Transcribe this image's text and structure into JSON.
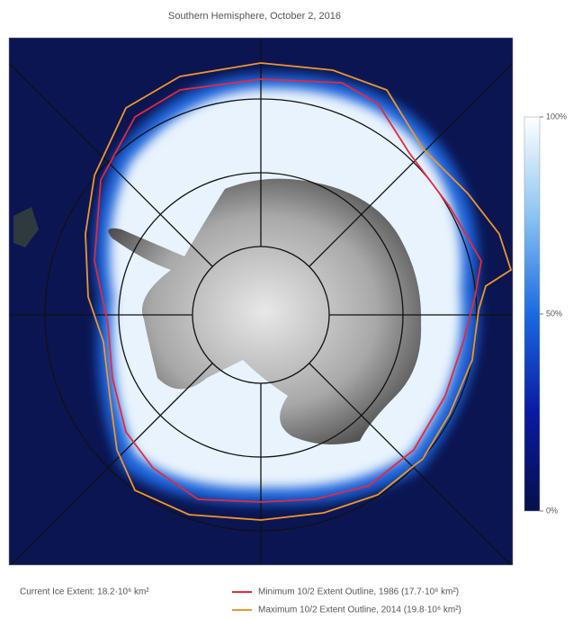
{
  "title": "Southern Hemisphere, October 2, 2016",
  "colorbar": {
    "ticks": [
      {
        "value": 100,
        "label": "100%"
      },
      {
        "value": 50,
        "label": "50%"
      },
      {
        "value": 0,
        "label": "0%"
      }
    ]
  },
  "legend": {
    "current": "Current Ice Extent: 18.2·10⁶ km²",
    "minimum": {
      "label": "Minimum 10/2 Extent Outline, 1986 (17.7·10⁶ km²)",
      "color": "#e8283a"
    },
    "maximum": {
      "label": "Maximum 10/2 Extent Outline, 2014 (19.8·10⁶ km²)",
      "color": "#f0962a"
    }
  }
}
